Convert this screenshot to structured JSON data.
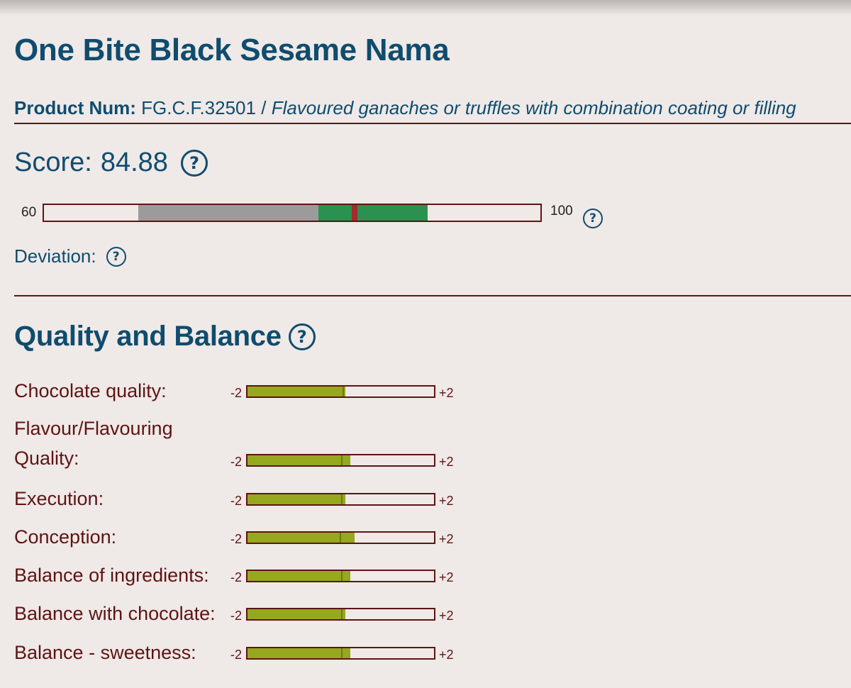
{
  "product": {
    "title": "One Bite Black Sesame Nama",
    "num_label": "Product Num:",
    "num_value": "FG.C.F.32501",
    "separator": "/",
    "category": "Flavoured ganaches or truffles with combination coating or filling"
  },
  "score": {
    "label": "Score:",
    "value": "84.88",
    "scale_min": "60",
    "scale_max": "100",
    "bar": {
      "min": 60,
      "max": 100,
      "gray_range": [
        67.6,
        82.1
      ],
      "green_range": [
        82.1,
        90.9
      ],
      "marker": 85.0
    }
  },
  "deviation": {
    "label": "Deviation:"
  },
  "quality": {
    "title": "Quality and Balance",
    "scale_min": "-2",
    "scale_max": "+2",
    "criteria": [
      {
        "label": "Chocolate quality:",
        "fill": 0.525,
        "mark": 0.51
      },
      {
        "label": "Flavour/Flavouring Quality:",
        "fill": 0.55,
        "mark": 0.5
      },
      {
        "label": "Execution:",
        "fill": 0.525,
        "mark": 0.5
      },
      {
        "label": "Conception:",
        "fill": 0.575,
        "mark": 0.495
      },
      {
        "label": "Balance of ingredients:",
        "fill": 0.55,
        "mark": 0.5
      },
      {
        "label": "Balance with chocolate:",
        "fill": 0.525,
        "mark": 0.5
      },
      {
        "label": "Balance - sweetness:",
        "fill": 0.55,
        "mark": 0.5
      }
    ]
  },
  "colors": {
    "heading": "#0f4c6e",
    "text": "#5e1414",
    "bar_gray": "#9b9b9b",
    "bar_green": "#2a9150",
    "bar_marker": "#a62b2b",
    "criteria_fill": "#95a81e"
  },
  "icons": {
    "help": "question-circle-icon"
  }
}
